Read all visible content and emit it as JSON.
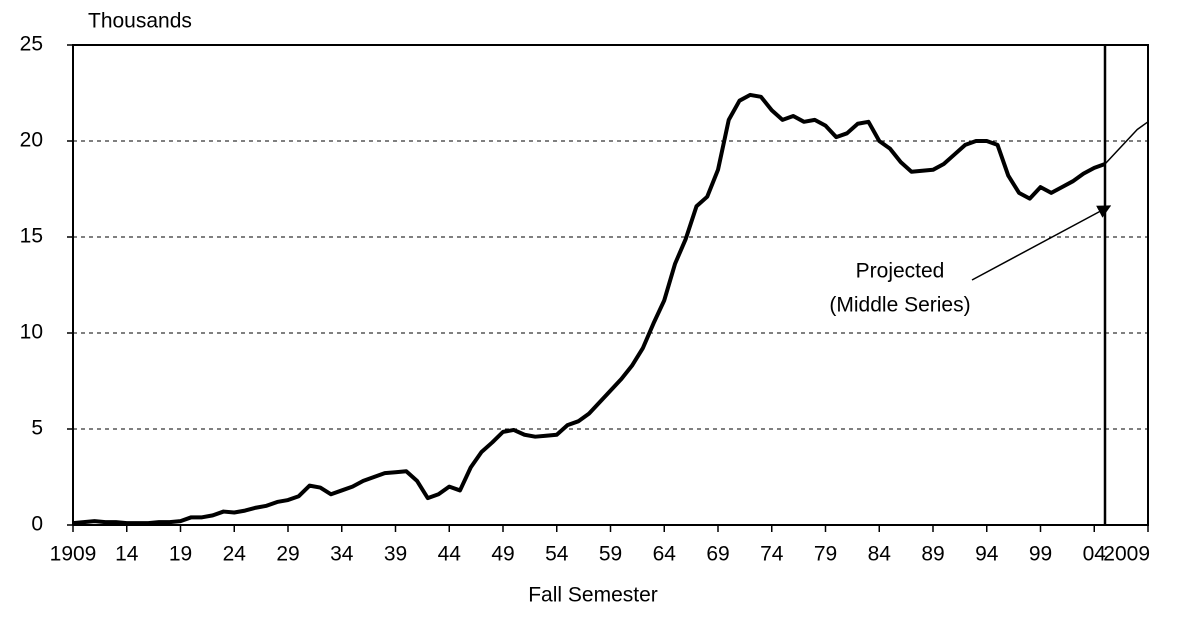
{
  "chart_data": {
    "type": "line",
    "y_axis_label": "Thousands",
    "x_axis_label": "Fall Semester",
    "annotation": [
      "Projected",
      "(Middle Series)"
    ],
    "series": [
      {
        "color": "#000000",
        "width": 4,
        "x": [
          1909,
          1910,
          1911,
          1912,
          1913,
          1914,
          1915,
          1916,
          1917,
          1918,
          1919,
          1920,
          1921,
          1922,
          1923,
          1924,
          1925,
          1926,
          1927,
          1928,
          1929,
          1930,
          1931,
          1932,
          1933,
          1934,
          1935,
          1936,
          1937,
          1938,
          1939,
          1940,
          1941,
          1942,
          1943,
          1944,
          1945,
          1946,
          1947,
          1948,
          1949,
          1950,
          1951,
          1952,
          1953,
          1954,
          1955,
          1956,
          1957,
          1958,
          1959,
          1960,
          1961,
          1962,
          1963,
          1964,
          1965,
          1966,
          1967,
          1968,
          1969,
          1970,
          1971,
          1972,
          1973,
          1974,
          1975,
          1976,
          1977,
          1978,
          1979,
          1980,
          1981,
          1982,
          1983,
          1984,
          1985,
          1986,
          1987,
          1988,
          1989,
          1990,
          1991,
          1992,
          1993,
          1994,
          1995,
          1996,
          1997,
          1998,
          1999,
          2000,
          2001,
          2002,
          2003,
          2004,
          2005
        ],
        "values": [
          0.1,
          0.15,
          0.2,
          0.15,
          0.15,
          0.1,
          0.1,
          0.1,
          0.15,
          0.15,
          0.2,
          0.4,
          0.4,
          0.5,
          0.7,
          0.65,
          0.75,
          0.9,
          1.0,
          1.2,
          1.3,
          1.5,
          2.05,
          1.95,
          1.6,
          1.8,
          2.0,
          2.3,
          2.5,
          2.7,
          2.75,
          2.8,
          2.3,
          1.4,
          1.6,
          2.0,
          1.8,
          3.0,
          3.8,
          4.3,
          4.85,
          4.95,
          4.7,
          4.6,
          4.65,
          4.7,
          5.2,
          5.4,
          5.8,
          6.4,
          7.0,
          7.6,
          8.3,
          9.2,
          10.5,
          11.7,
          13.6,
          14.9,
          16.6,
          17.1,
          18.5,
          21.1,
          22.1,
          22.4,
          22.3,
          21.6,
          21.1,
          21.3,
          21.0,
          21.1,
          20.8,
          20.2,
          20.4,
          20.9,
          21.0,
          20.0,
          19.6,
          18.9,
          18.4,
          18.45,
          18.5,
          18.8,
          19.3,
          19.8,
          20.0,
          20.0,
          19.8,
          18.2,
          17.3,
          17.0,
          17.6,
          17.3,
          17.6,
          17.9,
          18.3,
          18.6,
          18.8
        ]
      },
      {
        "color": "#000000",
        "width": 1.5,
        "x": [
          2005,
          2006,
          2007,
          2008,
          2009
        ],
        "values": [
          18.8,
          19.4,
          20.0,
          20.6,
          21.0
        ]
      }
    ],
    "projection_start": 2005,
    "xlim": [
      1909,
      2009
    ],
    "xticks": [
      1909,
      {
        "value": 1914,
        "label": "14"
      },
      {
        "value": 1919,
        "label": "19"
      },
      {
        "value": 1924,
        "label": "24"
      },
      {
        "value": 1929,
        "label": "29"
      },
      {
        "value": 1934,
        "label": "34"
      },
      {
        "value": 1939,
        "label": "39"
      },
      {
        "value": 1944,
        "label": "44"
      },
      {
        "value": 1949,
        "label": "49"
      },
      {
        "value": 1954,
        "label": "54"
      },
      {
        "value": 1959,
        "label": "59"
      },
      {
        "value": 1964,
        "label": "64"
      },
      {
        "value": 1969,
        "label": "69"
      },
      {
        "value": 1974,
        "label": "74"
      },
      {
        "value": 1979,
        "label": "79"
      },
      {
        "value": 1984,
        "label": "84"
      },
      {
        "value": 1989,
        "label": "89"
      },
      {
        "value": 1994,
        "label": "94"
      },
      {
        "value": 1999,
        "label": "99"
      },
      {
        "value": 2004,
        "label": "04"
      },
      2009
    ],
    "ylim": [
      0,
      25
    ],
    "yticks": [
      0,
      5,
      10,
      15,
      20,
      25
    ],
    "grid": true
  }
}
